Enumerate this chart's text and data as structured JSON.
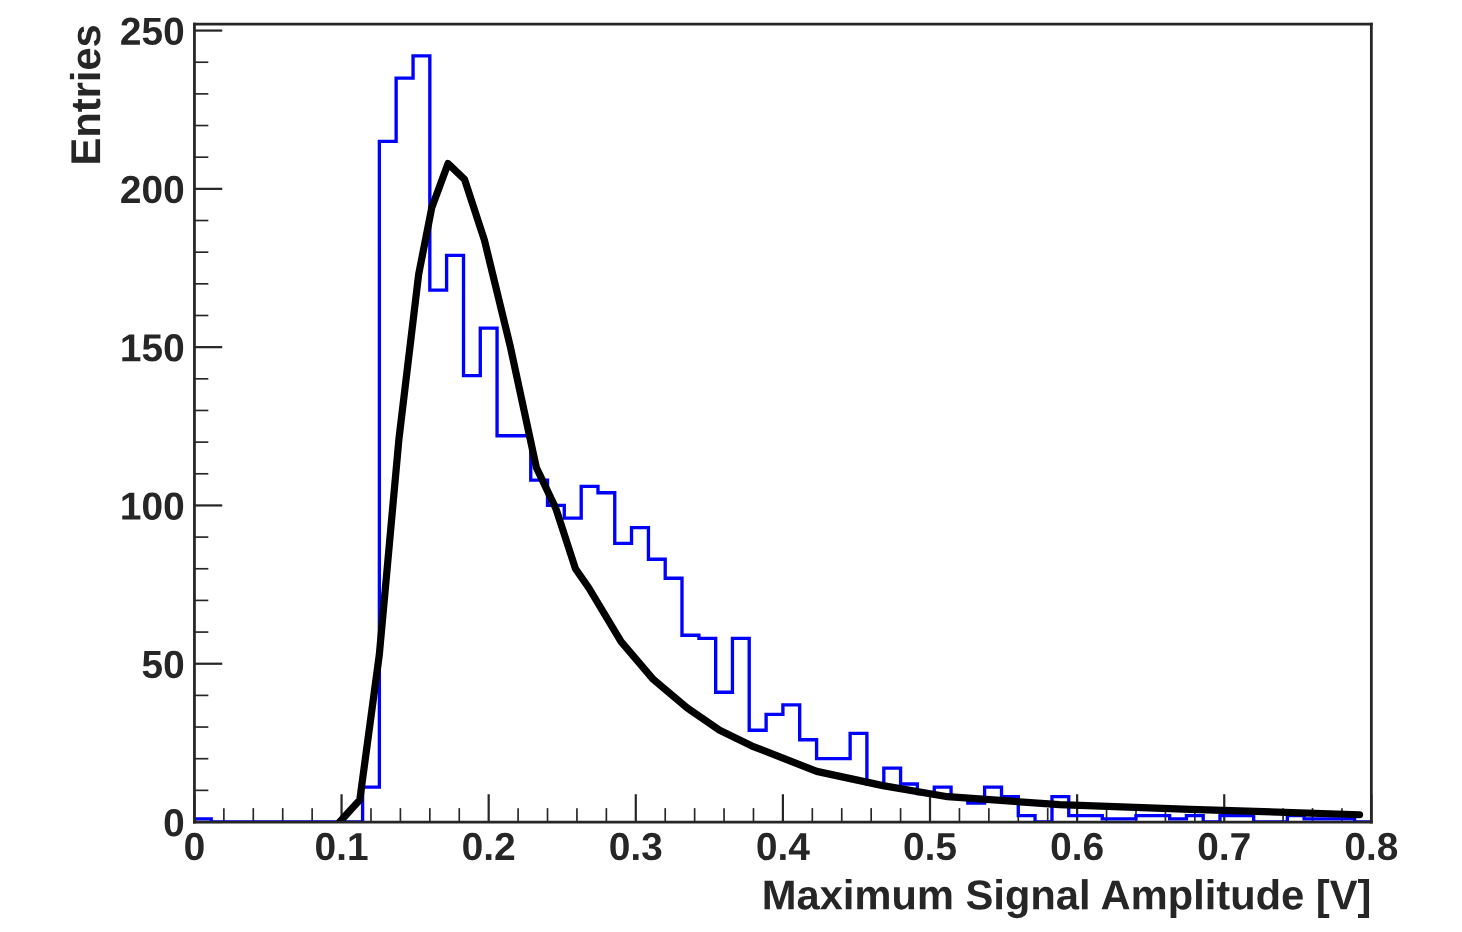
{
  "chart_data": {
    "type": "histogram",
    "xlabel": "Maximum Signal Amplitude [V]",
    "ylabel": "Entries",
    "xlim": [
      0,
      0.8
    ],
    "xticks": [
      {
        "value": 0,
        "label": "0"
      },
      0.1,
      0.2,
      0.3,
      0.4,
      0.5,
      0.6,
      0.7,
      0.8
    ],
    "ylim": [
      0,
      252
    ],
    "yticks": [
      0,
      50,
      100,
      150,
      200,
      250
    ],
    "grid": false,
    "series": [
      {
        "color": "#0000ff",
        "bins": [
          0,
          0.0114,
          0.0229,
          0.0343,
          0.0457,
          0.0571,
          0.0686,
          0.08,
          0.0914,
          0.1029,
          0.1143,
          0.1257,
          0.1371,
          0.1486,
          0.16,
          0.1714,
          0.1829,
          0.1943,
          0.2057,
          0.2171,
          0.2286,
          0.24,
          0.2514,
          0.2629,
          0.2743,
          0.2857,
          0.2971,
          0.3086,
          0.32,
          0.3314,
          0.3429,
          0.3543,
          0.3657,
          0.3771,
          0.3886,
          0.4,
          0.4114,
          0.4229,
          0.4343,
          0.4457,
          0.4571,
          0.4686,
          0.48,
          0.4914,
          0.5029,
          0.5143,
          0.5257,
          0.5371,
          0.5486,
          0.56,
          0.5714,
          0.5829,
          0.5943,
          0.6057,
          0.6171,
          0.6286,
          0.64,
          0.6514,
          0.6629,
          0.6743,
          0.6857,
          0.6971,
          0.7086,
          0.72,
          0.7314,
          0.7429,
          0.7543,
          0.7657,
          0.7771,
          0.7886,
          0.8
        ],
        "values": [
          1,
          0,
          0,
          0,
          0,
          0,
          0,
          0,
          0,
          0,
          11,
          215,
          235,
          242,
          168,
          179,
          141,
          156,
          122,
          122,
          108,
          100,
          96,
          106,
          104,
          88,
          93,
          83,
          77,
          59,
          58,
          41,
          58,
          29,
          34,
          37,
          26,
          20,
          20,
          28,
          12,
          17,
          12,
          9,
          11,
          8,
          6,
          11,
          8,
          2,
          0,
          8,
          2,
          2,
          1,
          1,
          2,
          2,
          1,
          2,
          0,
          2,
          2,
          0,
          0,
          2,
          1,
          1,
          1,
          0
        ]
      },
      {
        "type": "line",
        "color": "#000000",
        "x": [
          0.0987,
          0.1124,
          0.1257,
          0.139,
          0.1524,
          0.1613,
          0.1724,
          0.1836,
          0.197,
          0.2148,
          0.2324,
          0.2457,
          0.259,
          0.268,
          0.29,
          0.312,
          0.335,
          0.357,
          0.379,
          0.423,
          0.468,
          0.499,
          0.512,
          0.588,
          0.677,
          0.792
        ],
        "values": [
          0,
          7,
          53,
          121,
          173,
          194,
          208,
          203,
          184,
          150,
          112,
          99,
          80,
          74,
          57,
          45,
          36,
          29,
          24,
          16,
          11.5,
          9,
          8,
          5.5,
          4,
          2.3
        ]
      }
    ]
  }
}
